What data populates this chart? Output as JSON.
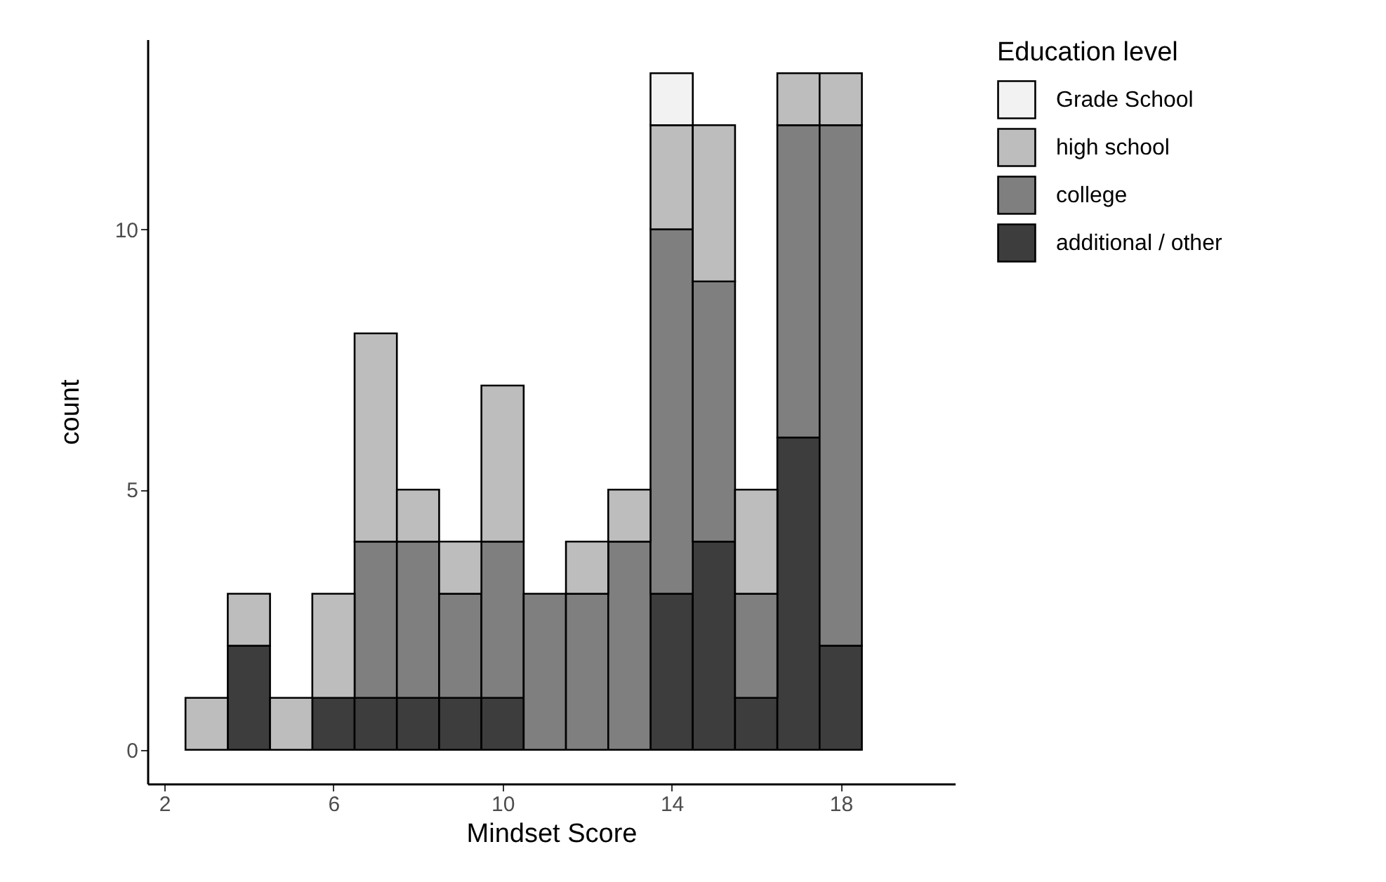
{
  "chart_data": {
    "type": "bar",
    "stacked": true,
    "xlabel": "Mindset Score",
    "ylabel": "count",
    "legend_title": "Education level",
    "legend": "right",
    "x": [
      3,
      4,
      5,
      6,
      7,
      8,
      9,
      10,
      11,
      12,
      13,
      14,
      15,
      16,
      17,
      18
    ],
    "series": [
      {
        "name": "additional / other",
        "color": "#3d3d3d",
        "values": [
          0,
          2,
          0,
          1,
          1,
          1,
          1,
          1,
          0,
          0,
          0,
          3,
          4,
          1,
          6,
          2
        ]
      },
      {
        "name": "college",
        "color": "#7f7f7f",
        "values": [
          0,
          0,
          0,
          0,
          3,
          3,
          2,
          3,
          3,
          3,
          4,
          7,
          5,
          2,
          6,
          10
        ]
      },
      {
        "name": "high school",
        "color": "#bdbdbd",
        "values": [
          1,
          1,
          1,
          2,
          4,
          1,
          1,
          3,
          0,
          1,
          1,
          2,
          3,
          2,
          1,
          1
        ]
      },
      {
        "name": "Grade School",
        "color": "#f2f2f2",
        "values": [
          0,
          0,
          0,
          0,
          0,
          0,
          0,
          0,
          0,
          0,
          0,
          1,
          0,
          0,
          0,
          0
        ]
      }
    ],
    "xlim": [
      1.6,
      20.7
    ],
    "xticks": [
      2,
      6,
      10,
      14,
      18
    ],
    "ylim": [
      -0.65,
      13.65
    ],
    "yticks": [
      0,
      5,
      10
    ],
    "grid": false
  }
}
